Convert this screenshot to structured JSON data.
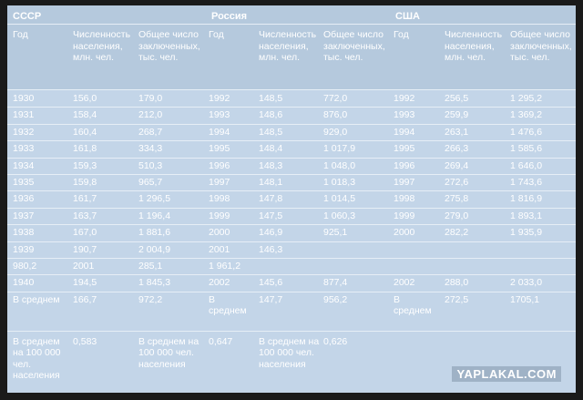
{
  "groups": [
    "СССР",
    "Россия",
    "США"
  ],
  "headers": [
    [
      "Год"
    ],
    [
      "Численность",
      "населения,",
      "млн. чел."
    ],
    [
      "Общее число",
      "заключенных,",
      "тыс. чел."
    ],
    [
      "Год"
    ],
    [
      "Численность",
      "населения,",
      "млн. чел."
    ],
    [
      "Общее число",
      "заключенных,",
      "тыс. чел."
    ],
    [
      "Год"
    ],
    [
      "Численность",
      "населения,",
      "млн. чел."
    ],
    [
      "Общее число",
      "заключенных,",
      "тыс. чел."
    ]
  ],
  "rows": [
    [
      "1930",
      "156,0",
      "179,0",
      "1992",
      "148,5",
      "772,0",
      "1992",
      "256,5",
      "1 295,2"
    ],
    [
      "1931",
      "158,4",
      "212,0",
      "1993",
      "148,6",
      "876,0",
      "1993",
      "259,9",
      "1 369,2"
    ],
    [
      "1932",
      "160,4",
      "268,7",
      "1994",
      "148,5",
      "929,0",
      "1994",
      "263,1",
      "1 476,6"
    ],
    [
      "1933",
      "161,8",
      "334,3",
      "1995",
      "148,4",
      "1 017,9",
      "1995",
      "266,3",
      "1 585,6"
    ],
    [
      "1934",
      "159,3",
      "510,3",
      "1996",
      "148,3",
      "1 048,0",
      "1996",
      "269,4",
      "1 646,0"
    ],
    [
      "1935",
      "159,8",
      "965,7",
      "1997",
      "148,1",
      "1 018,3",
      "1997",
      "272,6",
      "1 743,6"
    ],
    [
      "1936",
      "161,7",
      "1 296,5",
      "1998",
      "147,8",
      "1 014,5",
      "1998",
      "275,8",
      "1 816,9"
    ],
    [
      "1937",
      "163,7",
      "1 196,4",
      "1999",
      "147,5",
      "1 060,3",
      "1999",
      "279,0",
      "1 893,1"
    ],
    [
      "1938",
      "167,0",
      "1 881,6",
      "2000",
      "146,9",
      "925,1",
      "2000",
      "282,2",
      "1 935,9"
    ],
    [
      "1939",
      "190,7",
      "2 004,9",
      "2001",
      "146,3",
      "",
      "",
      "",
      ""
    ],
    [
      "980,2",
      "2001",
      "285,1",
      "1 961,2",
      "",
      "",
      "",
      "",
      ""
    ],
    [
      "1940",
      "194,5",
      "1 845,3",
      "2002",
      "145,6",
      "877,4",
      "2002",
      "288,0",
      "2 033,0"
    ]
  ],
  "avg_row": [
    [
      "В среднем"
    ],
    [
      "166,7"
    ],
    [
      "972,2"
    ],
    [
      "В",
      "среднем"
    ],
    [
      "147,7"
    ],
    [
      "956,2"
    ],
    [
      "В",
      "среднем"
    ],
    [
      "272,5"
    ],
    [
      "1705,1"
    ]
  ],
  "per100k_row": [
    [
      "В среднем",
      "на 100 000",
      "чел.",
      "населения"
    ],
    [
      "0,583"
    ],
    [
      "В среднем на",
      "100 000 чел.",
      "населения"
    ],
    [
      "0,647"
    ],
    [
      "В среднем на",
      "100 000 чел.",
      "населения"
    ],
    [
      "0,626"
    ],
    [
      ""
    ],
    [
      ""
    ],
    [
      ""
    ]
  ],
  "watermark": "YAPLAKAL.COM"
}
